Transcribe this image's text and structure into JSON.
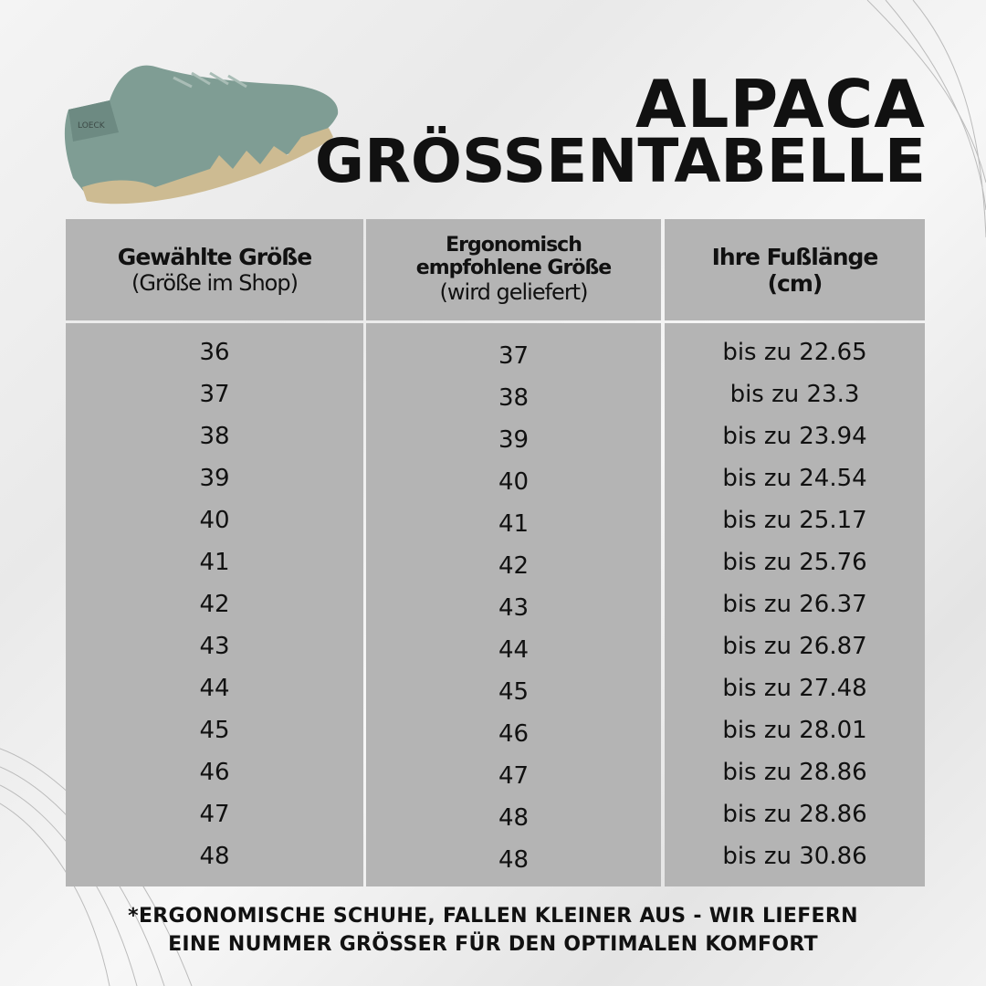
{
  "title": {
    "line1": "ALPACA",
    "line2": "GRÖSSENTABELLE"
  },
  "table": {
    "headers": [
      {
        "main": "Gewählte Größe",
        "sub": "(Größe im Shop)"
      },
      {
        "main_line1": "Ergonomisch",
        "main_line2": "empfohlene Größe",
        "sub": "(wird geliefert)"
      },
      {
        "main_line1": "Ihre Fußlänge",
        "main_line2": "(cm)"
      }
    ],
    "rows": [
      {
        "chosen": "36",
        "recommended": "37",
        "foot_length": "bis zu 22.65"
      },
      {
        "chosen": "37",
        "recommended": "38",
        "foot_length": "bis zu 23.3"
      },
      {
        "chosen": "38",
        "recommended": "39",
        "foot_length": "bis zu 23.94"
      },
      {
        "chosen": "39",
        "recommended": "40",
        "foot_length": "bis zu 24.54"
      },
      {
        "chosen": "40",
        "recommended": "41",
        "foot_length": "bis zu 25.17"
      },
      {
        "chosen": "41",
        "recommended": "42",
        "foot_length": "bis zu 25.76"
      },
      {
        "chosen": "42",
        "recommended": "43",
        "foot_length": "bis zu 26.37"
      },
      {
        "chosen": "43",
        "recommended": "44",
        "foot_length": "bis zu 26.87"
      },
      {
        "chosen": "44",
        "recommended": "45",
        "foot_length": "bis zu 27.48"
      },
      {
        "chosen": "45",
        "recommended": "46",
        "foot_length": "bis zu 28.01"
      },
      {
        "chosen": "46",
        "recommended": "47",
        "foot_length": "bis zu 28.86"
      },
      {
        "chosen": "47",
        "recommended": "48",
        "foot_length": "bis zu 28.86"
      },
      {
        "chosen": "48",
        "recommended": "48",
        "foot_length": "bis zu 30.86"
      }
    ]
  },
  "footer": {
    "line1": "*ERGONOMISCHE SCHUHE, FALLEN KLEINER AUS - WIR LIEFERN",
    "line2": "EINE NUMMER GRÖSSER FÜR DEN OPTIMALEN KOMFORT"
  },
  "product_image": {
    "logo_text": "LOECK"
  },
  "colors": {
    "table_cell": "#b4b4b4",
    "shoe": "#7f9d94",
    "sole": "#cdbb92"
  }
}
